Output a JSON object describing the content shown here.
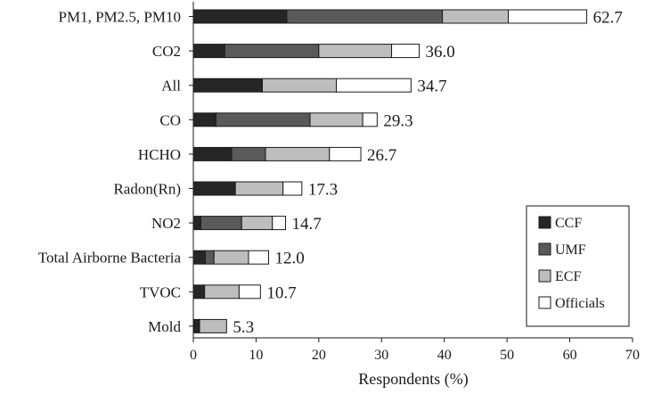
{
  "chart_data": {
    "type": "bar",
    "orientation": "horizontal",
    "stacked": true,
    "title": "",
    "xlabel": "Respondents (%)",
    "ylabel": "",
    "xlim": [
      0,
      70
    ],
    "xticks": [
      "0",
      "10",
      "20",
      "30",
      "40",
      "50",
      "60",
      "70"
    ],
    "grid": false,
    "legend_position": "bottom-right",
    "categories": [
      "PM1, PM2.5, PM10",
      "CO2",
      "All",
      "CO",
      "HCHO",
      "Radon(Rn)",
      "NO2",
      "Total Airborne Bacteria",
      "TVOC",
      "Mold"
    ],
    "totals": [
      "62.7",
      "36.0",
      "34.7",
      "29.3",
      "26.7",
      "17.3",
      "14.7",
      "12.0",
      "10.7",
      "5.3"
    ],
    "series": [
      {
        "name": "CCF",
        "color": "#262626",
        "values": [
          14.9,
          5.0,
          11.0,
          3.6,
          6.1,
          6.7,
          1.2,
          1.9,
          1.8,
          1.0
        ]
      },
      {
        "name": "UMF",
        "color": "#5a5a5a",
        "values": [
          24.8,
          15.0,
          0.0,
          15.0,
          5.4,
          0.0,
          6.5,
          1.4,
          0.0,
          0.0
        ]
      },
      {
        "name": "ECF",
        "color": "#bdbdbd",
        "values": [
          10.5,
          11.6,
          11.8,
          8.4,
          10.2,
          7.6,
          4.9,
          5.5,
          5.5,
          4.3
        ]
      },
      {
        "name": "Officials",
        "color": "#ffffff",
        "values": [
          12.5,
          4.4,
          11.9,
          2.3,
          5.0,
          3.0,
          2.1,
          3.2,
          3.4,
          0.0
        ]
      }
    ]
  }
}
